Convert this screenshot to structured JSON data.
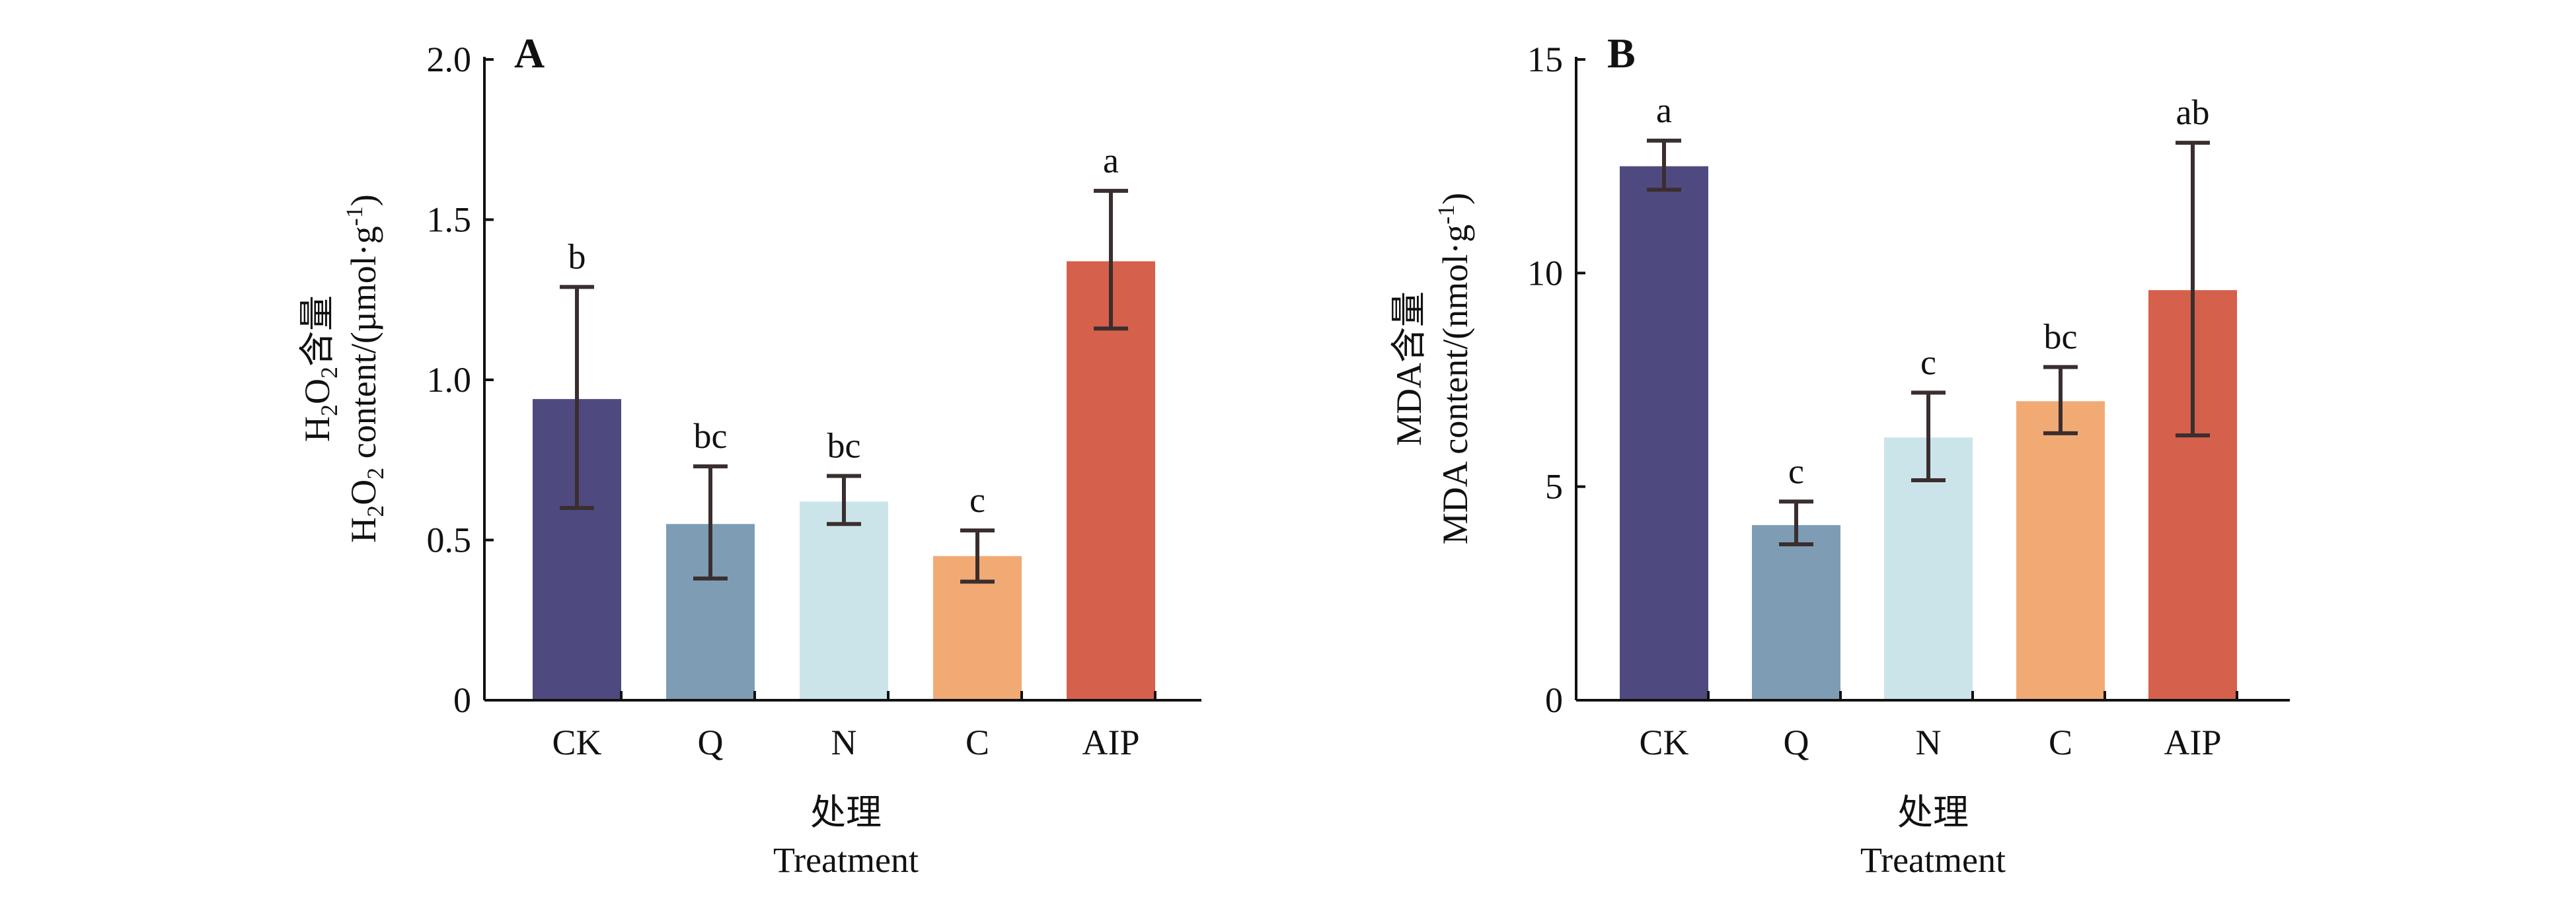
{
  "figure_panels": [
    {
      "id": "A",
      "ylabel_line1_prefix": "H",
      "ylabel_line1_sub1": "2",
      "ylabel_line1_mid": "O",
      "ylabel_line1_sub2": "2",
      "ylabel_line1_suffix": "含量",
      "ylabel_line2_prefix": "H",
      "ylabel_line2_sub1": "2",
      "ylabel_line2_mid": "O",
      "ylabel_line2_sub2": "2",
      "ylabel_line2_suffix": " content/(µmol·g",
      "ylabel_line2_sup": "-1",
      "ylabel_line2_end": ")"
    },
    {
      "id": "B",
      "ylabel_line1": "MDA含量",
      "ylabel_line2_prefix": "MDA content/(nmol·g",
      "ylabel_line2_sup": "-1",
      "ylabel_line2_end": ")"
    }
  ],
  "chart_data": [
    {
      "type": "bar",
      "panel": "A",
      "categories": [
        "CK",
        "Q",
        "N",
        "C",
        "AIP"
      ],
      "values": [
        0.94,
        0.55,
        0.62,
        0.45,
        1.37
      ],
      "error_low": [
        0.6,
        0.38,
        0.55,
        0.37,
        1.16
      ],
      "error_high": [
        1.29,
        0.73,
        0.7,
        0.53,
        1.59
      ],
      "significance": [
        "b",
        "bc",
        "bc",
        "c",
        "a"
      ],
      "colors": [
        "#4e4a80",
        "#7e9db5",
        "#cbe4ea",
        "#f2aa74",
        "#d5604b"
      ],
      "xlabel_line1": "处理",
      "xlabel_line2": "Treatment",
      "ylim": [
        0,
        2.0
      ],
      "yticks": [
        0,
        0.5,
        1.0,
        1.5,
        2.0
      ],
      "ytick_labels": [
        "0",
        "0.5",
        "1.0",
        "1.5",
        "2.0"
      ],
      "grid": false
    },
    {
      "type": "bar",
      "panel": "B",
      "categories": [
        "CK",
        "Q",
        "N",
        "C",
        "AIP"
      ],
      "values": [
        12.5,
        4.1,
        6.15,
        7.0,
        9.6
      ],
      "error_low": [
        11.95,
        3.65,
        5.15,
        6.25,
        6.2
      ],
      "error_high": [
        13.1,
        4.65,
        7.2,
        7.8,
        13.05
      ],
      "significance": [
        "a",
        "c",
        "c",
        "bc",
        "ab"
      ],
      "colors": [
        "#4e4a80",
        "#7e9db5",
        "#cbe4ea",
        "#f2aa74",
        "#d5604b"
      ],
      "xlabel_line1": "处理",
      "xlabel_line2": "Treatment",
      "ylim": [
        0,
        15
      ],
      "yticks": [
        0,
        5,
        10,
        15
      ],
      "ytick_labels": [
        "0",
        "5",
        "10",
        "15"
      ],
      "grid": false
    }
  ]
}
